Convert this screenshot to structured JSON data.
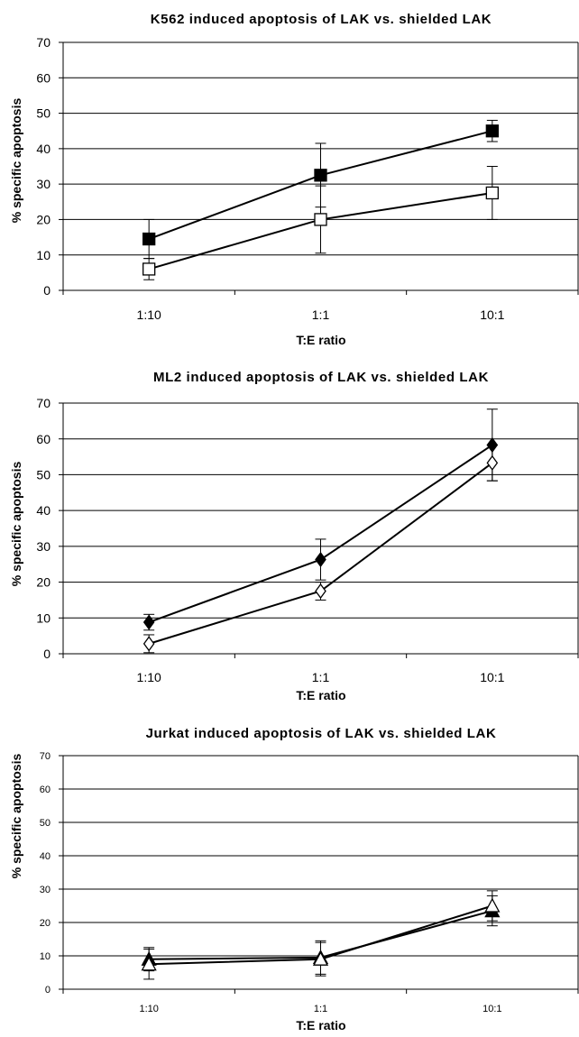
{
  "chart_data": [
    {
      "type": "line",
      "title": "K562 induced apoptosis of LAK vs. shielded LAK",
      "xlabel": "T:E ratio",
      "ylabel": "% specific apoptosis",
      "categories": [
        "1:10",
        "1:1",
        "10:1"
      ],
      "ylim": [
        0,
        70
      ],
      "yticks": [
        0,
        10,
        20,
        30,
        40,
        50,
        60,
        70
      ],
      "grid": true,
      "series": [
        {
          "marker": "filled-square",
          "values": [
            14.5,
            32.5,
            45
          ],
          "errors": [
            5.5,
            9,
            3
          ]
        },
        {
          "marker": "open-square",
          "values": [
            6,
            20,
            27.5
          ],
          "errors": [
            3,
            9.5,
            7.5
          ]
        }
      ]
    },
    {
      "type": "line",
      "title": "ML2 induced apoptosis of LAK vs. shielded LAK",
      "xlabel": "T:E ratio",
      "ylabel": "% specific apoptosis",
      "categories": [
        "1:10",
        "1:1",
        "10:1"
      ],
      "ylim": [
        0,
        70
      ],
      "yticks": [
        0,
        10,
        20,
        30,
        40,
        50,
        60,
        70
      ],
      "grid": true,
      "series": [
        {
          "marker": "filled-diamond",
          "values": [
            8.8,
            26.3,
            58.3
          ],
          "errors": [
            2.2,
            5.7,
            10
          ]
        },
        {
          "marker": "open-diamond",
          "values": [
            2.8,
            17.5,
            53.3
          ],
          "errors": [
            2.5,
            2.5,
            5
          ]
        }
      ]
    },
    {
      "type": "line",
      "title": "Jurkat induced apoptosis of LAK vs. shielded LAK",
      "xlabel": "T:E ratio",
      "ylabel": "% specific apoptosis",
      "categories": [
        "1:10",
        "1:1",
        "10:1"
      ],
      "ylim": [
        0,
        70
      ],
      "yticks": [
        0,
        10,
        20,
        30,
        40,
        50,
        60,
        70
      ],
      "grid": true,
      "series": [
        {
          "marker": "filled-triangle",
          "values": [
            9,
            9.5,
            23.5
          ],
          "errors": [
            3.5,
            5,
            4.5
          ]
        },
        {
          "marker": "open-triangle",
          "values": [
            7.5,
            9,
            25
          ],
          "errors": [
            4.5,
            5,
            4.5
          ]
        }
      ]
    }
  ]
}
